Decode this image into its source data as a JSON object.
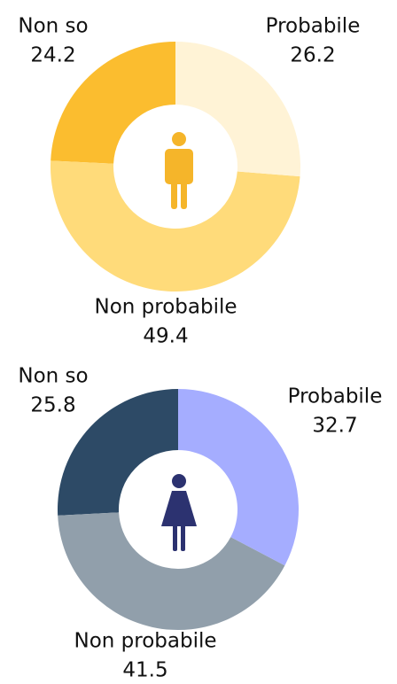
{
  "chart_data": [
    {
      "type": "pie",
      "categories": [
        "Probabile",
        "Non probabile",
        "Non so"
      ],
      "values": [
        26.2,
        49.4,
        24.2
      ],
      "colors": [
        "#fff3d6",
        "#ffdb7a",
        "#fbbd2f"
      ]
    },
    {
      "type": "pie",
      "categories": [
        "Probabile",
        "Non probabile",
        "Non so"
      ],
      "values": [
        32.7,
        41.5,
        25.8
      ],
      "colors": [
        "#a5adff",
        "#919fab",
        "#2d4a66"
      ]
    }
  ]
}
